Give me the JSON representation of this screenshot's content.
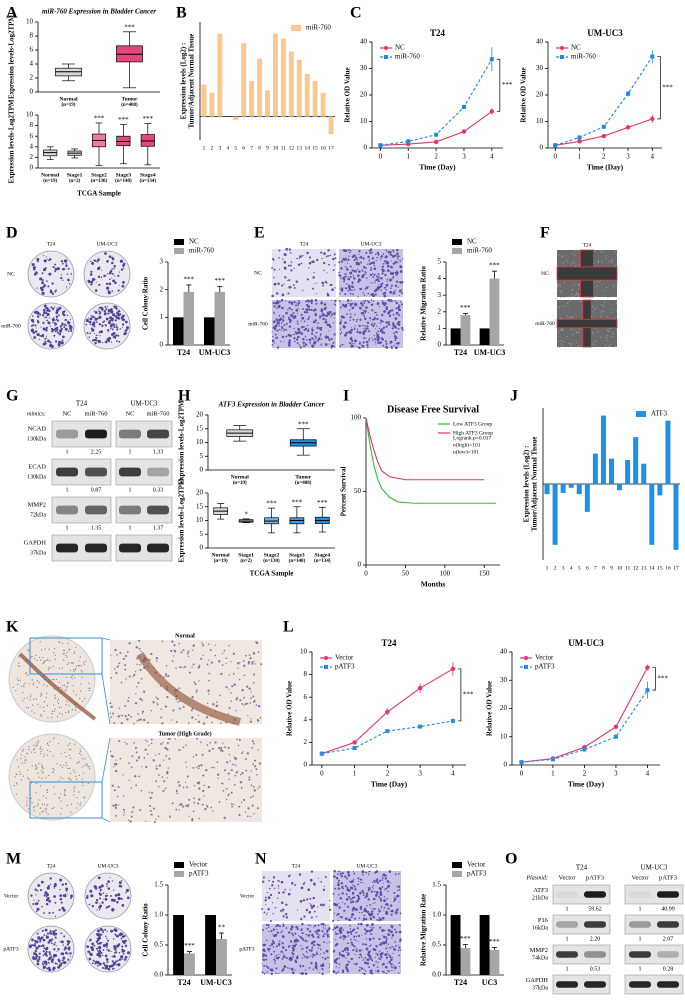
{
  "panel_labels": [
    "A",
    "B",
    "C",
    "D",
    "E",
    "F",
    "G",
    "H",
    "I",
    "J",
    "K",
    "L",
    "M",
    "N",
    "O"
  ],
  "chart_data": [
    {
      "type": "box",
      "title": "miR-760 Expression in Bladder Cancer",
      "ylabel": "Expression levels-Log2TPM",
      "categories": [
        "Normal",
        "Tumor"
      ],
      "sample_sizes": [
        "(n=19)",
        "(n=408)"
      ],
      "colors": [
        "#d9d9d9",
        "#e8457a"
      ],
      "ylim": [
        0,
        10
      ],
      "yticks": [
        0,
        2,
        4,
        6,
        8,
        10
      ],
      "significance": [
        null,
        "***"
      ],
      "boxes": [
        {
          "min": 1.6,
          "q1": 2.3,
          "median": 2.9,
          "q3": 3.4,
          "max": 4.0
        },
        {
          "min": 0.6,
          "q1": 4.3,
          "median": 5.4,
          "q3": 6.6,
          "max": 8.6
        }
      ]
    },
    {
      "type": "box",
      "ylabel": "Expression levels-Log2TPM",
      "xlabel": "TCGA Sample",
      "categories": [
        "Normal",
        "Stage1",
        "Stage2",
        "Stage3",
        "Stage4"
      ],
      "sample_sizes": [
        "(n=19)",
        "(n=2)",
        "(n=130)",
        "(n=140)",
        "(n=134)"
      ],
      "colors": [
        "#d9d9d9",
        "#d9d9d9",
        "#f07aa0",
        "#e8457a",
        "#e8457a"
      ],
      "ylim": [
        0,
        10
      ],
      "yticks": [
        0,
        2,
        4,
        6,
        8,
        10
      ],
      "significance": [
        null,
        null,
        "***",
        "***",
        "***"
      ],
      "boxes": [
        {
          "min": 1.6,
          "q1": 2.3,
          "median": 2.9,
          "q3": 3.4,
          "max": 4.0
        },
        {
          "min": 1.9,
          "q1": 2.4,
          "median": 2.8,
          "q3": 3.2,
          "max": 3.6
        },
        {
          "min": 0.5,
          "q1": 4.0,
          "median": 5.2,
          "q3": 6.4,
          "max": 8.5
        },
        {
          "min": 0.8,
          "q1": 4.2,
          "median": 5.0,
          "q3": 6.0,
          "max": 8.2
        },
        {
          "min": 0.6,
          "q1": 4.1,
          "median": 5.1,
          "q3": 6.3,
          "max": 8.4
        }
      ]
    },
    {
      "type": "bar",
      "ylabel": [
        "Expression levels (Log2) :",
        "Tumor/Adjacent Normal Tissue"
      ],
      "categories": [
        "1",
        "2",
        "3",
        "4",
        "5",
        "6",
        "7",
        "8",
        "9",
        "10",
        "11",
        "12",
        "13",
        "14",
        "15",
        "16",
        "17"
      ],
      "ylim": [
        -2,
        8
      ],
      "legend": "upper right",
      "series": [
        {
          "name": "miR-760",
          "color": "#f9c88f",
          "values": [
            2.7,
            2.0,
            7.0,
            0,
            -0.3,
            6.2,
            3.0,
            4.9,
            2.2,
            7.0,
            6.6,
            5.5,
            4.8,
            3.6,
            3.0,
            2.0,
            -1.5
          ]
        }
      ]
    },
    {
      "type": "line",
      "title": "T24",
      "xlabel": "Time (Day)",
      "ylabel": "Relative OD Value",
      "x": [
        0,
        1,
        2,
        3,
        4
      ],
      "xlim": [
        -0.3,
        4.4
      ],
      "xticks": [
        0,
        1,
        2,
        3,
        4
      ],
      "ylim": [
        0,
        40
      ],
      "yticks": [
        0,
        10,
        20,
        30,
        40
      ],
      "legend": "upper left",
      "significance": "***",
      "series": [
        {
          "name": "NC",
          "color": "#e8336b",
          "marker": "circle",
          "line_style": "solid",
          "values": [
            1,
            1.5,
            2.3,
            6.2,
            13.8
          ],
          "errors": [
            0.2,
            0.2,
            0.3,
            0.5,
            1.2
          ]
        },
        {
          "name": "miR-760",
          "color": "#1e88e5",
          "marker": "square",
          "line_style": "dashed",
          "values": [
            1,
            2.5,
            5,
            15.5,
            33.5
          ],
          "errors": [
            0.2,
            0.3,
            0.4,
            0.8,
            4.5
          ]
        }
      ]
    },
    {
      "type": "line",
      "title": "UM-UC3",
      "xlabel": "Time (Day)",
      "ylabel": "Relative OD Value",
      "x": [
        0,
        1,
        2,
        3,
        4
      ],
      "xlim": [
        -0.3,
        4.4
      ],
      "xticks": [
        0,
        1,
        2,
        3,
        4
      ],
      "ylim": [
        0,
        40
      ],
      "yticks": [
        0,
        10,
        20,
        30,
        40
      ],
      "legend": "upper left",
      "significance": "***",
      "series": [
        {
          "name": "NC",
          "color": "#e8336b",
          "marker": "circle",
          "line_style": "solid",
          "values": [
            1,
            2.5,
            4.5,
            7.8,
            11
          ],
          "errors": [
            0.2,
            0.3,
            0.4,
            0.6,
            1.5
          ]
        },
        {
          "name": "miR-760",
          "color": "#1e88e5",
          "marker": "square",
          "line_style": "dashed",
          "values": [
            1,
            4,
            8,
            20.5,
            34.5
          ],
          "errors": [
            0.2,
            0.3,
            0.5,
            1,
            2.5
          ]
        }
      ]
    },
    {
      "type": "bar",
      "ylabel": "Cell Colony Ratio",
      "categories": [
        "T24",
        "UM-UC3"
      ],
      "ylim": [
        0,
        3
      ],
      "yticks": [
        0,
        1,
        2,
        3
      ],
      "legend": "top",
      "significance": [
        "***",
        "***"
      ],
      "series": [
        {
          "name": "NC",
          "color": "#000000",
          "values": [
            1,
            1
          ]
        },
        {
          "name": "miR-760",
          "color": "#a6a6a6",
          "values": [
            1.92,
            1.92
          ],
          "errors": [
            0.25,
            0.2
          ]
        }
      ]
    },
    {
      "type": "bar",
      "ylabel": "Relative Migration Ratio",
      "categories": [
        "T24",
        "UM-UC3"
      ],
      "ylim": [
        0,
        5
      ],
      "yticks": [
        0,
        1,
        2,
        3,
        4,
        5
      ],
      "legend": "top",
      "significance": [
        "***",
        "***"
      ],
      "series": [
        {
          "name": "NC",
          "color": "#000000",
          "values": [
            1,
            1
          ]
        },
        {
          "name": "miR-760",
          "color": "#a6a6a6",
          "values": [
            1.8,
            4.0
          ],
          "errors": [
            0.1,
            0.45
          ]
        }
      ]
    },
    {
      "type": "box",
      "title": "ATF3 Expression in Bladder Cancer",
      "ylabel": "Expression levels-Log2TPM",
      "categories": [
        "Normal",
        "Tumor"
      ],
      "sample_sizes": [
        "(n=19)",
        "(n=408)"
      ],
      "colors": [
        "#d9d9d9",
        "#1f8fe0"
      ],
      "ylim": [
        0,
        20
      ],
      "yticks": [
        0,
        5,
        10,
        15,
        20
      ],
      "significance": [
        null,
        "***"
      ],
      "boxes": [
        {
          "min": 10.5,
          "q1": 12.2,
          "median": 13.4,
          "q3": 14.6,
          "max": 16.2
        },
        {
          "min": 5.4,
          "q1": 8.7,
          "median": 9.9,
          "q3": 11.0,
          "max": 15.0
        }
      ]
    },
    {
      "type": "box",
      "ylabel": "Expression levels-Log2TPM",
      "xlabel": "TCGA Sample",
      "categories": [
        "Normal",
        "Stage1",
        "Stage2",
        "Stage3",
        "Stage4"
      ],
      "sample_sizes": [
        "(n=19)",
        "(n=2)",
        "(n=130)",
        "(n=140)",
        "(n=134)"
      ],
      "colors": [
        "#d9d9d9",
        "#d9d9d9",
        "#6fb3ec",
        "#3d9be6",
        "#1f8fe0"
      ],
      "ylim": [
        0,
        20
      ],
      "yticks": [
        0,
        5,
        10,
        15,
        20
      ],
      "significance": [
        null,
        "*",
        "***",
        "***",
        "***"
      ],
      "boxes": [
        {
          "min": 10.5,
          "q1": 12.2,
          "median": 13.4,
          "q3": 14.6,
          "max": 16.2
        },
        {
          "min": 9.2,
          "q1": 9.4,
          "median": 9.8,
          "q3": 10.3,
          "max": 10.6
        },
        {
          "min": 5.5,
          "q1": 8.8,
          "median": 9.8,
          "q3": 11.0,
          "max": 14.5
        },
        {
          "min": 5.5,
          "q1": 8.8,
          "median": 10.0,
          "q3": 11.0,
          "max": 15.0
        },
        {
          "min": 5.8,
          "q1": 8.9,
          "median": 10.0,
          "q3": 11.2,
          "max": 14.8
        }
      ]
    },
    {
      "type": "line",
      "title": "Disease Free Survival",
      "xlabel": "Months",
      "ylabel": "Percent Survival",
      "xlim": [
        0,
        170
      ],
      "xticks": [
        0,
        50,
        100,
        150
      ],
      "ylim": [
        0,
        100
      ],
      "yticks": [
        0,
        50,
        100
      ],
      "legend": "upper right",
      "annotations": [
        "Logrank p=0.017",
        "n(high)=101",
        "n(low)=101"
      ],
      "series": [
        {
          "name": "Low ATF3 Group",
          "color": "#2fbf3a",
          "line_style": "solid",
          "x": [
            0,
            5,
            10,
            15,
            20,
            30,
            40,
            60,
            165
          ],
          "values": [
            100,
            82,
            68,
            58,
            52,
            46,
            43,
            42,
            42
          ]
        },
        {
          "name": "High ATF3 Group",
          "color": "#e8336b",
          "line_style": "solid",
          "x": [
            0,
            5,
            10,
            15,
            20,
            30,
            40,
            50,
            150
          ],
          "values": [
            100,
            88,
            78,
            70,
            64,
            60,
            59,
            58,
            58
          ]
        }
      ]
    },
    {
      "type": "bar",
      "ylabel": [
        "Expression levels (Log2) :",
        "Tumor/Adjacent Normal Tissue"
      ],
      "categories": [
        "1",
        "2",
        "3",
        "4",
        "5",
        "6",
        "7",
        "8",
        "9",
        "10",
        "11",
        "12",
        "13",
        "14",
        "15",
        "16",
        "17"
      ],
      "ylim": [
        -6,
        6
      ],
      "legend": "upper right",
      "series": [
        {
          "name": "ATF3",
          "color": "#1e90e6",
          "values": [
            -0.8,
            -4.8,
            -0.7,
            -0.3,
            -0.8,
            -2.2,
            2.4,
            5.4,
            2.0,
            -0.5,
            1.9,
            3.7,
            1.6,
            -4.8,
            -0.9,
            5.0,
            -5.2
          ]
        }
      ]
    },
    {
      "type": "line",
      "title": "T24",
      "xlabel": "Time (Day)",
      "ylabel": "Relative OD Value",
      "x": [
        0,
        1,
        2,
        3,
        4
      ],
      "xlim": [
        -0.3,
        4.4
      ],
      "xticks": [
        0,
        1,
        2,
        3,
        4
      ],
      "ylim": [
        0,
        10
      ],
      "yticks": [
        0,
        2,
        4,
        6,
        8,
        10
      ],
      "legend": "upper left",
      "significance": "***",
      "series": [
        {
          "name": "Vector",
          "color": "#e8336b",
          "marker": "circle",
          "line_style": "solid",
          "values": [
            1,
            2,
            4.7,
            6.8,
            8.5
          ],
          "errors": [
            0.1,
            0.1,
            0.3,
            0.4,
            0.6
          ]
        },
        {
          "name": "pATF3",
          "color": "#2a8ae0",
          "marker": "square",
          "line_style": "dashed",
          "values": [
            1,
            1.5,
            3,
            3.4,
            3.9
          ],
          "errors": [
            0.1,
            0.1,
            0.1,
            0.1,
            0.2
          ]
        }
      ]
    },
    {
      "type": "line",
      "title": "UM-UC3",
      "xlabel": "Time (Day)",
      "ylabel": "Relative OD Value",
      "x": [
        0,
        1,
        2,
        3,
        4
      ],
      "xlim": [
        -0.3,
        4.4
      ],
      "xticks": [
        0,
        1,
        2,
        3,
        4
      ],
      "ylim": [
        0,
        40
      ],
      "yticks": [
        0,
        10,
        20,
        30,
        40
      ],
      "legend": "upper left",
      "significance": "***",
      "series": [
        {
          "name": "Vector",
          "color": "#e8336b",
          "marker": "circle",
          "line_style": "solid",
          "values": [
            1,
            2.3,
            6.3,
            13.5,
            34.5
          ],
          "errors": [
            0.1,
            0.2,
            0.4,
            0.5,
            1
          ]
        },
        {
          "name": "pATF3",
          "color": "#2a8ae0",
          "marker": "square",
          "line_style": "dashed",
          "values": [
            1,
            2,
            5.5,
            10,
            26.5
          ],
          "errors": [
            0.1,
            0.1,
            0.3,
            0.4,
            3
          ]
        }
      ]
    },
    {
      "type": "bar",
      "ylabel": "Cell Colony Ratio",
      "categories": [
        "T24",
        "UM-UC3"
      ],
      "ylim": [
        0,
        1.5
      ],
      "yticks": [
        {
          "value": 0,
          "label": "0.0"
        },
        {
          "value": 0.5,
          "label": "0.5"
        },
        {
          "value": 1,
          "label": "1.0"
        },
        {
          "value": 1.5,
          "label": "1.5"
        }
      ],
      "legend": "top",
      "significance": [
        "***",
        "**"
      ],
      "series": [
        {
          "name": "Vector",
          "color": "#000000",
          "values": [
            1,
            1
          ]
        },
        {
          "name": "pATF3",
          "color": "#a6a6a6",
          "values": [
            0.36,
            0.6
          ],
          "errors": [
            0.03,
            0.1
          ]
        }
      ]
    },
    {
      "type": "bar",
      "ylabel": "Relative Migration Rate",
      "categories": [
        "T24",
        "UC3"
      ],
      "ylim": [
        0,
        1.5
      ],
      "yticks": [
        {
          "value": 0,
          "label": "0.0"
        },
        {
          "value": 0.5,
          "label": "0.5"
        },
        {
          "value": 1,
          "label": "1.0"
        },
        {
          "value": 1.5,
          "label": "1.5"
        }
      ],
      "legend": "top",
      "significance": [
        "***",
        "***"
      ],
      "series": [
        {
          "name": "Vector",
          "color": "#000000",
          "values": [
            1,
            1
          ]
        },
        {
          "name": "pATF3",
          "color": "#a6a6a6",
          "values": [
            0.45,
            0.42
          ],
          "errors": [
            0.06,
            0.04
          ]
        }
      ]
    }
  ],
  "images": {
    "D": {
      "columns": [
        "T24",
        "UM-UC3"
      ],
      "rows": [
        "NC",
        "miR-760"
      ]
    },
    "E": {
      "columns": [
        "T24",
        "UM-UC3"
      ],
      "rows": [
        "NC",
        "miR-760"
      ]
    },
    "F": {
      "columns": [
        "T24"
      ],
      "rows": [
        "NC",
        "miR-760"
      ]
    },
    "K": {
      "rows": [
        "Normal",
        "Tumor (High Grade)"
      ]
    },
    "M": {
      "columns": [
        "T24",
        "UM-UC3"
      ],
      "rows": [
        "Vector",
        "pATF3"
      ]
    },
    "N": {
      "columns": [
        "T24",
        "UM-UC3"
      ],
      "rows": [
        "Vector",
        "pATF3"
      ]
    }
  },
  "blots": {
    "G": {
      "treatment_label": "mimics:",
      "groups": [
        "T24",
        "UM-UC3"
      ],
      "lanes": [
        "NC",
        "miR-760",
        "NC",
        "miR-760"
      ],
      "rows": [
        {
          "protein": "NCAD",
          "size": "130kDa",
          "quant": [
            "1",
            "2.25",
            "1",
            "1.33"
          ]
        },
        {
          "protein": "ECAD",
          "size": "130kDa",
          "quant": [
            "1",
            "0.87",
            "1",
            "0.33"
          ]
        },
        {
          "protein": "MMP2",
          "size": "72kDa",
          "quant": [
            "1",
            "1.35",
            "1",
            "1.37"
          ]
        },
        {
          "protein": "GAPDH",
          "size": "37kDa"
        }
      ]
    },
    "O": {
      "treatment_label": "Plasmid:",
      "groups": [
        "T24",
        "UM-UC3"
      ],
      "lanes": [
        "Vector",
        "pATF3",
        "Vector",
        "pATF3"
      ],
      "rows": [
        {
          "protein": "ATF3",
          "size": "21kDa",
          "quant": [
            "1",
            "59.62",
            "1",
            "40.99"
          ]
        },
        {
          "protein": "P16",
          "size": "16kDa",
          "quant": [
            "1",
            "2.20",
            "1",
            "2.07"
          ]
        },
        {
          "protein": "MMP2",
          "size": "74kDa",
          "quant": [
            "1",
            "0.53",
            "1",
            "0.28"
          ]
        },
        {
          "protein": "GAPDH",
          "size": "37kDa"
        }
      ]
    }
  }
}
